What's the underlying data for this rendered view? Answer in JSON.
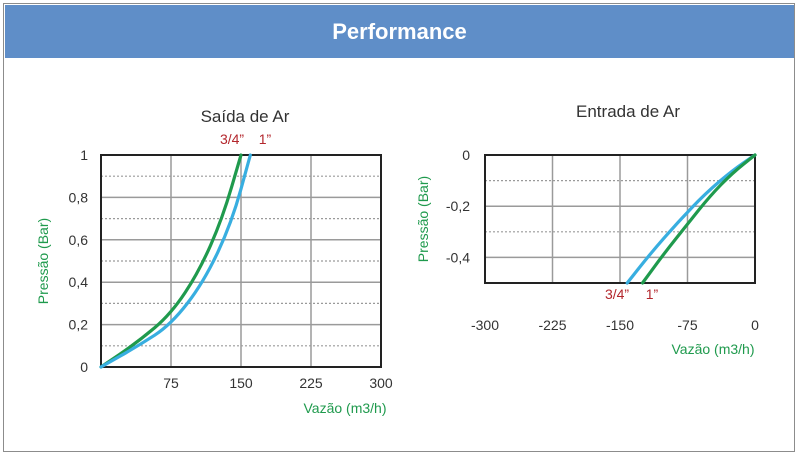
{
  "header": {
    "title": "Performance"
  },
  "colors": {
    "banner": "#5f8ec8",
    "green": "#1f9a4d",
    "blue": "#38aee0",
    "red": "#b3262c",
    "grid": "#9a9a9a"
  },
  "chart_data": [
    {
      "type": "line",
      "title": "Saída de Ar",
      "xlabel": "Vazão (m3/h)",
      "ylabel": "Pressão (Bar)",
      "xlim": [
        0,
        300
      ],
      "ylim": [
        0,
        1
      ],
      "xticks": [
        "75",
        "150",
        "225",
        "300"
      ],
      "yticks": [
        "0",
        "0,2",
        "0,4",
        "0,6",
        "0,8",
        "1"
      ],
      "series_labels": [
        "3/4”",
        "1”"
      ],
      "series": [
        {
          "name": "3/4”",
          "color": "#1f9a4d",
          "x": [
            0,
            40,
            75,
            105,
            130,
            150
          ],
          "y": [
            0,
            0.12,
            0.25,
            0.45,
            0.7,
            1.0
          ]
        },
        {
          "name": "1”",
          "color": "#38aee0",
          "x": [
            0,
            40,
            75,
            110,
            140,
            160
          ],
          "y": [
            0,
            0.1,
            0.2,
            0.4,
            0.68,
            1.0
          ]
        }
      ]
    },
    {
      "type": "line",
      "title": "Entrada de Ar",
      "xlabel": "Vazão (m3/h)",
      "ylabel": "Pressão (Bar)",
      "xlim": [
        -300,
        0
      ],
      "ylim": [
        -0.5,
        0
      ],
      "xticks": [
        "-300",
        "-225",
        "-150",
        "-75",
        "0"
      ],
      "yticks": [
        "0",
        "-0,2",
        "-0,4"
      ],
      "series_labels": [
        "3/4”",
        "1”"
      ],
      "series": [
        {
          "name": "3/4”",
          "color": "#38aee0",
          "x": [
            -142,
            -115,
            -85,
            -55,
            -25,
            0
          ],
          "y": [
            -0.5,
            -0.38,
            -0.26,
            -0.15,
            -0.06,
            0
          ]
        },
        {
          "name": "1”",
          "color": "#1f9a4d",
          "x": [
            -125,
            -100,
            -75,
            -50,
            -25,
            0
          ],
          "y": [
            -0.5,
            -0.38,
            -0.27,
            -0.16,
            -0.07,
            0
          ]
        }
      ]
    }
  ]
}
